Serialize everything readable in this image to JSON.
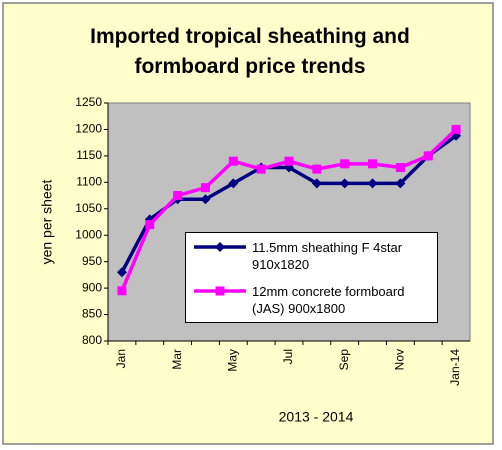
{
  "chart_data": {
    "type": "line",
    "title": "Imported tropical sheathing and formboard price trends",
    "x_label": "2013 - 2014",
    "y_label": "yen per sheet",
    "categories": [
      "Jan",
      null,
      "Mar",
      null,
      "May",
      null,
      "Jul",
      null,
      "Sep",
      null,
      "Nov",
      null,
      "Jan-14"
    ],
    "series": [
      {
        "name": "11.5mm sheathing F 4star 910x1820",
        "color": "#000080",
        "marker": "diamond",
        "values": [
          930,
          1030,
          1068,
          1068,
          1098,
          1128,
          1128,
          1098,
          1098,
          1098,
          1098,
          1150,
          1188
        ]
      },
      {
        "name": "12mm concrete formboard (JAS) 900x1800",
        "color": "#ff00ff",
        "marker": "square",
        "values": [
          895,
          1020,
          1075,
          1090,
          1140,
          1125,
          1140,
          1125,
          1135,
          1135,
          1128,
          1150,
          1200
        ]
      }
    ],
    "ylim": [
      800,
      1250
    ],
    "yticks": [
      800,
      850,
      900,
      950,
      1000,
      1050,
      1100,
      1150,
      1200,
      1250
    ],
    "grid": false,
    "plot_background": "#c0c0c0",
    "background": "#ffffcc"
  }
}
